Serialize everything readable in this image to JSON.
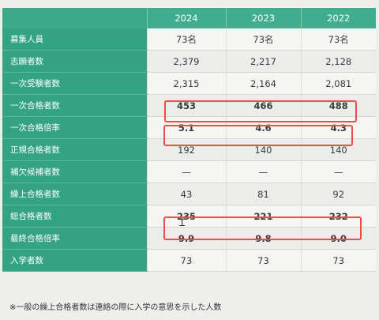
{
  "table": {
    "years": [
      "2024",
      "2023",
      "2022"
    ],
    "rows": [
      {
        "label": "募集人員",
        "values": [
          "73名",
          "73名",
          "73名"
        ]
      },
      {
        "label": "志願者数",
        "values": [
          "2,379",
          "2,217",
          "2,128"
        ]
      },
      {
        "label": "一次受験者数",
        "values": [
          "2,315",
          "2,164",
          "2,081"
        ]
      },
      {
        "label": "一次合格者数",
        "values": [
          "453",
          "466",
          "488"
        ]
      },
      {
        "label": "一次合格倍率",
        "values": [
          "5.1",
          "4.6",
          "4.3"
        ]
      },
      {
        "label": "正規合格者数",
        "values": [
          "192",
          "140",
          "140"
        ]
      },
      {
        "label": "補欠候補者数",
        "values": [
          "—",
          "—",
          "—"
        ]
      },
      {
        "label": "繰上合格者数",
        "values": [
          "43",
          "81",
          "92"
        ]
      },
      {
        "label": "総合格者数",
        "values": [
          "235",
          "221",
          "232"
        ]
      },
      {
        "label": "最終合格倍率",
        "values": [
          "9.9",
          "9.8",
          "9.0"
        ]
      },
      {
        "label": "入学者数",
        "values": [
          "73",
          "73",
          "73"
        ]
      }
    ]
  },
  "footnote": "※一般の繰上合格者数は連絡の際に入学の意思を示した人数",
  "colors": {
    "header": "#3fae8e",
    "label_column": "#33a382",
    "highlight": "#ee4b4b"
  },
  "icons": {
    "cursor": "text-cursor-icon"
  }
}
